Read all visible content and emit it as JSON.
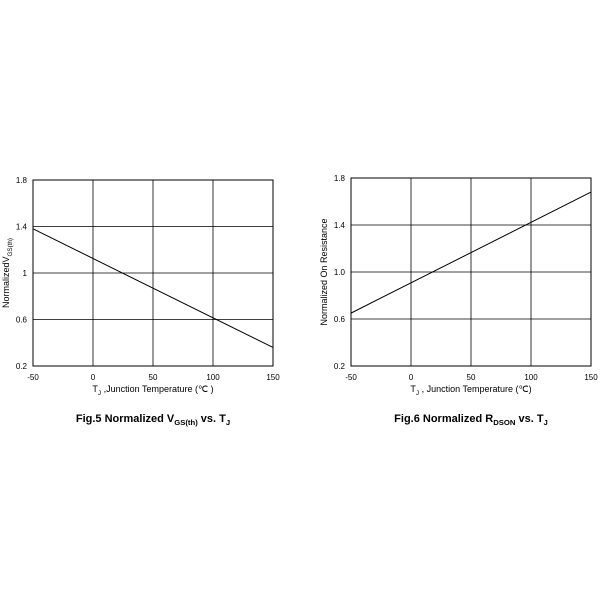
{
  "chart_data": [
    {
      "type": "line",
      "title": [
        "Fig.5 Normalized V",
        "GS(th)",
        " vs. T",
        "J"
      ],
      "xlabel": [
        "T",
        "J",
        " ,Junction Temperature (℃ )"
      ],
      "ylabel": [
        "NormalizedV",
        "GS(th)"
      ],
      "x": [
        -50,
        150
      ],
      "series": [
        {
          "color": "#000000",
          "values": [
            1.38,
            0.36
          ]
        }
      ],
      "xlim": [
        -50,
        150
      ],
      "xticks": [
        -50,
        0,
        50,
        100,
        150
      ],
      "ylim": [
        0.2,
        1.8
      ],
      "yticks": [
        0.2,
        0.6,
        1,
        1.4,
        1.8
      ],
      "grid": true
    },
    {
      "type": "line",
      "title": [
        "Fig.6 Normalized R",
        "DSON",
        " vs. T",
        "J"
      ],
      "xlabel": [
        "T",
        "J",
        " , Junction Temperature (℃)"
      ],
      "ylabel": [
        "Normalized On Resistance"
      ],
      "x": [
        -50,
        150
      ],
      "series": [
        {
          "color": "#000000",
          "values": [
            0.65,
            1.68
          ]
        }
      ],
      "xlim": [
        -50,
        150
      ],
      "xticks": [
        -50,
        0,
        50,
        100,
        150
      ],
      "ylim": [
        0.2,
        1.8
      ],
      "yticks": [
        0.2,
        0.6,
        {
          "value": 1,
          "label": "1.0"
        },
        1.4,
        1.8
      ],
      "grid": true
    }
  ]
}
